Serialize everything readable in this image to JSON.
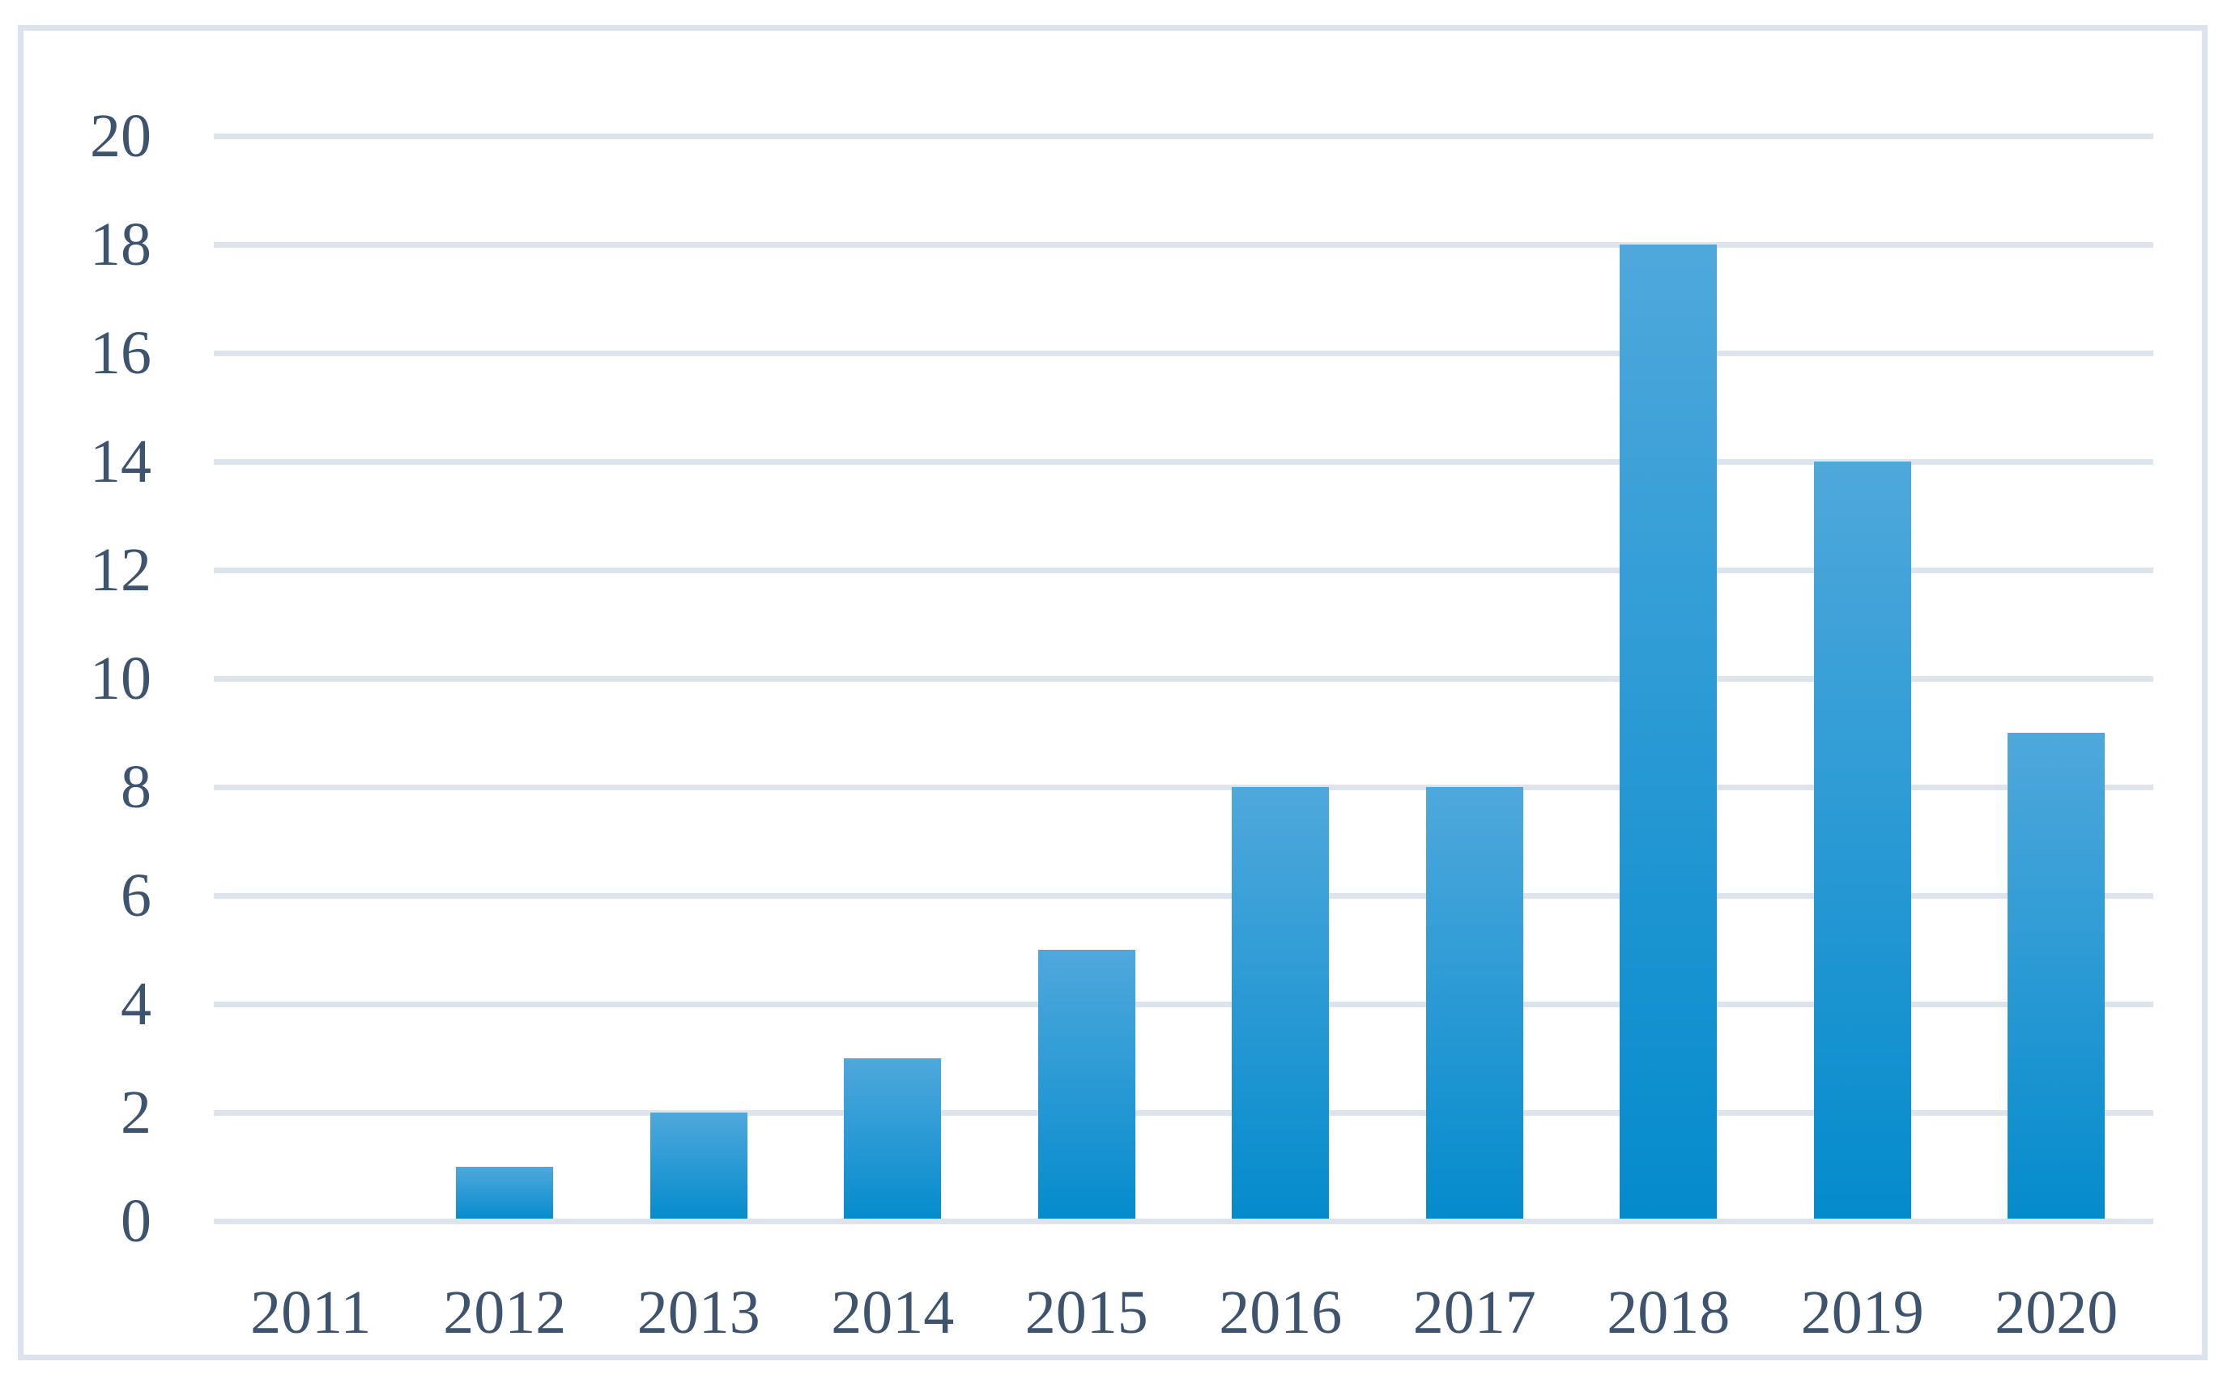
{
  "chart_data": {
    "type": "bar",
    "title": "",
    "xlabel": "",
    "ylabel": "",
    "categories": [
      "2011",
      "2012",
      "2013",
      "2014",
      "2015",
      "2016",
      "2017",
      "2018",
      "2019",
      "2020"
    ],
    "values": [
      0,
      1,
      2,
      3,
      5,
      8,
      8,
      18,
      14,
      9
    ],
    "ylim": [
      0,
      20
    ],
    "yticks": [
      0,
      2,
      4,
      6,
      8,
      10,
      12,
      14,
      16,
      18,
      20
    ],
    "grid": true,
    "gridline_orientation": "horizontal",
    "legend_position": "none",
    "colors": {
      "bar_gradient_top": "#4fa8dc",
      "bar_gradient_bottom": "#048bcc",
      "gridline": "#dee4ec",
      "frame_border": "#dde3ed",
      "tick_text": "#3d536e",
      "background": "#ffffff"
    }
  }
}
